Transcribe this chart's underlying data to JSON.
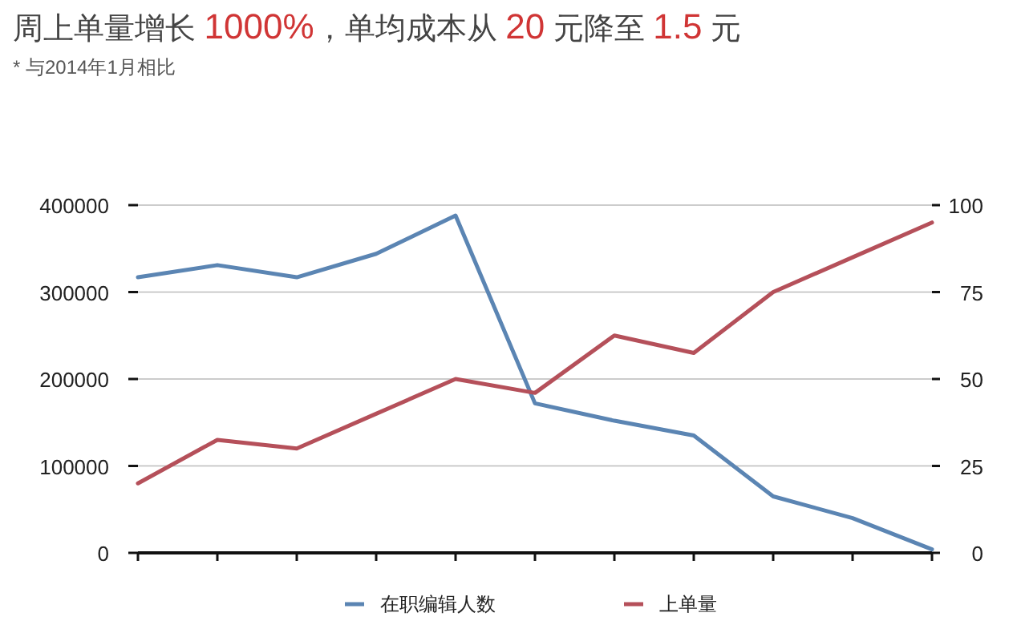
{
  "chart_data": {
    "type": "line",
    "title": "周上单量增长 1000%，单均成本从 20 元降至 1.5 元",
    "subtitle": "* 与2014年1月相比",
    "categories": [
      null,
      null,
      null,
      null,
      null,
      null,
      null,
      null,
      null,
      null,
      null
    ],
    "series": [
      {
        "name": "在职编辑人数",
        "color": "#5b85b3",
        "values": [
          317000,
          331000,
          317000,
          344000,
          388000,
          172000,
          152000,
          135000,
          65000,
          40000,
          4000
        ]
      },
      {
        "name": "上单量",
        "color": "#b5505a",
        "axis": "y2",
        "values": [
          20,
          32.5,
          30,
          40,
          50,
          46,
          62.5,
          57.5,
          75,
          85,
          95
        ]
      }
    ],
    "ylim": [
      0,
      400000
    ],
    "yticks": [
      0,
      100000,
      200000,
      300000,
      400000
    ],
    "y2lim": [
      0,
      100
    ],
    "y2ticks": [
      0,
      25,
      50,
      75,
      100
    ],
    "grid": "y",
    "legend": "bottom",
    "marker": "none",
    "line_style": "solid"
  }
}
